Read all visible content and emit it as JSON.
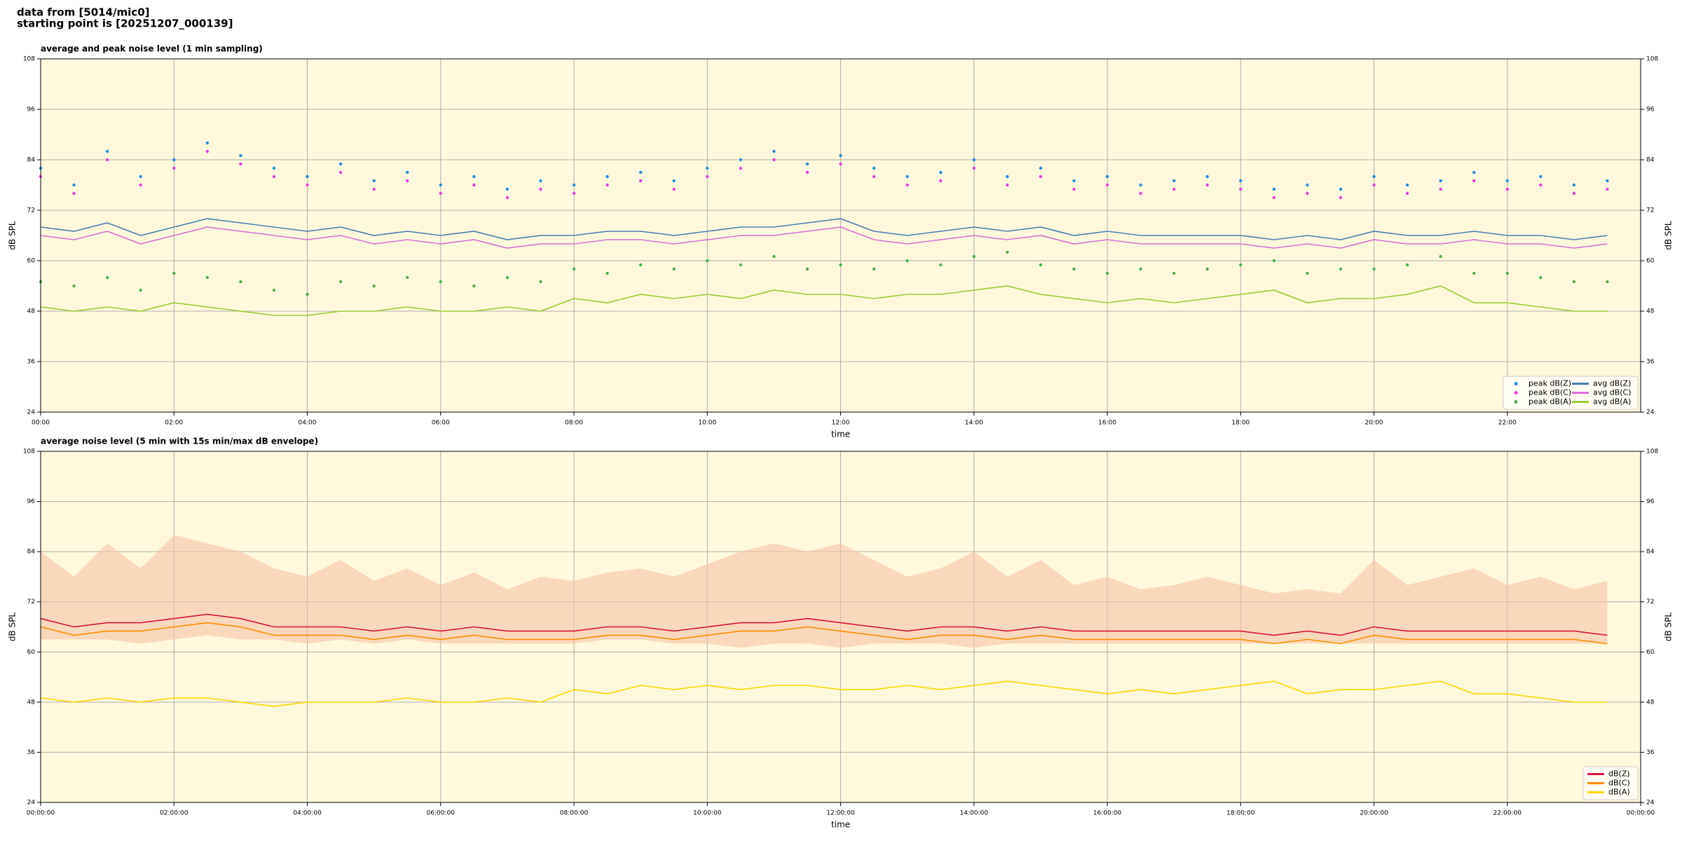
{
  "header": {
    "line1": "data from [5014/mic0]",
    "line2": "starting point is [20251207_000139]"
  },
  "chart_data": [
    {
      "type": "line",
      "title": "average and peak noise level (1 min sampling)",
      "xlabel": "time",
      "ylabel": "dB SPL",
      "background": "#fff8dc",
      "grid": true,
      "legend": "lower right",
      "legend_ncol": 2,
      "x": [
        0,
        30,
        60,
        90,
        120,
        150,
        180,
        210,
        240,
        270,
        300,
        330,
        360,
        390,
        420,
        450,
        480,
        510,
        540,
        570,
        600,
        630,
        660,
        690,
        720,
        750,
        780,
        810,
        840,
        870,
        900,
        930,
        960,
        990,
        1020,
        1050,
        1080,
        1110,
        1140,
        1170,
        1200,
        1230,
        1260,
        1290,
        1320,
        1350,
        1380,
        1410
      ],
      "xlim": [
        0,
        1440
      ],
      "xticks": [
        {
          "value": 0,
          "label": "00:00"
        },
        {
          "value": 120,
          "label": "02:00"
        },
        {
          "value": 240,
          "label": "04:00"
        },
        {
          "value": 360,
          "label": "06:00"
        },
        {
          "value": 480,
          "label": "08:00"
        },
        {
          "value": 600,
          "label": "10:00"
        },
        {
          "value": 720,
          "label": "12:00"
        },
        {
          "value": 840,
          "label": "14:00"
        },
        {
          "value": 960,
          "label": "16:00"
        },
        {
          "value": 1080,
          "label": "18:00"
        },
        {
          "value": 1200,
          "label": "20:00"
        },
        {
          "value": 1320,
          "label": "22:00"
        }
      ],
      "ylim": [
        24,
        108
      ],
      "yticks": [
        24,
        36,
        48,
        60,
        72,
        84,
        96,
        108
      ],
      "series": [
        {
          "name": "peak dB(Z)",
          "type": "scatter",
          "color": "#1f8fe0",
          "values": [
            82,
            78,
            86,
            80,
            84,
            88,
            85,
            82,
            80,
            83,
            79,
            81,
            78,
            80,
            77,
            79,
            78,
            80,
            81,
            79,
            82,
            84,
            86,
            83,
            85,
            82,
            80,
            81,
            84,
            80,
            82,
            79,
            80,
            78,
            79,
            80,
            79,
            77,
            78,
            77,
            80,
            78,
            79,
            81,
            79,
            80,
            78,
            79
          ]
        },
        {
          "name": "peak dB(C)",
          "type": "scatter",
          "color": "#e83ee0",
          "values": [
            80,
            76,
            84,
            78,
            82,
            86,
            83,
            80,
            78,
            81,
            77,
            79,
            76,
            78,
            75,
            77,
            76,
            78,
            79,
            77,
            80,
            82,
            84,
            81,
            83,
            80,
            78,
            79,
            82,
            78,
            80,
            77,
            78,
            76,
            77,
            78,
            77,
            75,
            76,
            75,
            78,
            76,
            77,
            79,
            77,
            78,
            76,
            77
          ]
        },
        {
          "name": "peak dB(A)",
          "type": "scatter",
          "color": "#4caf50",
          "values": [
            55,
            54,
            56,
            53,
            57,
            56,
            55,
            53,
            52,
            55,
            54,
            56,
            55,
            54,
            56,
            55,
            58,
            57,
            59,
            58,
            60,
            59,
            61,
            58,
            59,
            58,
            60,
            59,
            61,
            62,
            59,
            58,
            57,
            58,
            57,
            58,
            59,
            60,
            57,
            58,
            58,
            59,
            61,
            57,
            57,
            56,
            55,
            55
          ]
        },
        {
          "name": "avg dB(Z)",
          "type": "line",
          "color": "#4a7fb0",
          "values": [
            68,
            67,
            69,
            66,
            68,
            70,
            69,
            68,
            67,
            68,
            66,
            67,
            66,
            67,
            65,
            66,
            66,
            67,
            67,
            66,
            67,
            68,
            68,
            69,
            70,
            67,
            66,
            67,
            68,
            67,
            68,
            66,
            67,
            66,
            66,
            66,
            66,
            65,
            66,
            65,
            67,
            66,
            66,
            67,
            66,
            66,
            65,
            66
          ]
        },
        {
          "name": "avg dB(C)",
          "type": "line",
          "color": "#da70d6",
          "values": [
            66,
            65,
            67,
            64,
            66,
            68,
            67,
            66,
            65,
            66,
            64,
            65,
            64,
            65,
            63,
            64,
            64,
            65,
            65,
            64,
            65,
            66,
            66,
            67,
            68,
            65,
            64,
            65,
            66,
            65,
            66,
            64,
            65,
            64,
            64,
            64,
            64,
            63,
            64,
            63,
            65,
            64,
            64,
            65,
            64,
            64,
            63,
            64
          ]
        },
        {
          "name": "avg dB(A)",
          "type": "line",
          "color": "#9acd32",
          "values": [
            49,
            48,
            49,
            48,
            50,
            49,
            48,
            47,
            47,
            48,
            48,
            49,
            48,
            48,
            49,
            48,
            51,
            50,
            52,
            51,
            52,
            51,
            53,
            52,
            52,
            51,
            52,
            52,
            53,
            54,
            52,
            51,
            50,
            51,
            50,
            51,
            52,
            53,
            50,
            51,
            51,
            52,
            54,
            50,
            50,
            49,
            48,
            48
          ]
        }
      ]
    },
    {
      "type": "line",
      "title": "average noise level (5 min with 15s min/max dB envelope)",
      "xlabel": "time",
      "ylabel": "dB SPL",
      "background": "#fff8dc",
      "grid": true,
      "legend": "lower right",
      "legend_ncol": 1,
      "x": [
        0,
        30,
        60,
        90,
        120,
        150,
        180,
        210,
        240,
        270,
        300,
        330,
        360,
        390,
        420,
        450,
        480,
        510,
        540,
        570,
        600,
        630,
        660,
        690,
        720,
        750,
        780,
        810,
        840,
        870,
        900,
        930,
        960,
        990,
        1020,
        1050,
        1080,
        1110,
        1140,
        1170,
        1200,
        1230,
        1260,
        1290,
        1320,
        1350,
        1380,
        1410
      ],
      "xlim": [
        0,
        1440
      ],
      "xticks": [
        {
          "value": 0,
          "label": "00:00:00"
        },
        {
          "value": 120,
          "label": "02:00:00"
        },
        {
          "value": 240,
          "label": "04:00:00"
        },
        {
          "value": 360,
          "label": "06:00:00"
        },
        {
          "value": 480,
          "label": "08:00:00"
        },
        {
          "value": 600,
          "label": "10:00:00"
        },
        {
          "value": 720,
          "label": "12:00:00"
        },
        {
          "value": 840,
          "label": "14:00:00"
        },
        {
          "value": 960,
          "label": "16:00:00"
        },
        {
          "value": 1080,
          "label": "18:00:00"
        },
        {
          "value": 1200,
          "label": "20:00:00"
        },
        {
          "value": 1320,
          "label": "22:00:00"
        },
        {
          "value": 1440,
          "label": "00:00:00"
        }
      ],
      "ylim": [
        24,
        108
      ],
      "yticks": [
        24,
        36,
        48,
        60,
        72,
        84,
        96,
        108
      ],
      "envelope": {
        "color": "#f7c3a6",
        "upper": [
          84,
          78,
          86,
          80,
          88,
          86,
          84,
          80,
          78,
          82,
          77,
          80,
          76,
          79,
          75,
          78,
          77,
          79,
          80,
          78,
          81,
          84,
          86,
          84,
          86,
          82,
          78,
          80,
          84,
          78,
          82,
          76,
          78,
          75,
          76,
          78,
          76,
          74,
          75,
          74,
          82,
          76,
          78,
          80,
          76,
          78,
          75,
          77
        ],
        "lower": [
          63,
          63,
          63,
          62,
          63,
          64,
          63,
          63,
          62,
          63,
          62,
          63,
          62,
          62,
          62,
          62,
          62,
          63,
          63,
          62,
          62,
          61,
          62,
          62,
          61,
          62,
          62,
          62,
          61,
          62,
          62,
          62,
          62,
          62,
          62,
          62,
          62,
          62,
          62,
          62,
          62,
          62,
          62,
          62,
          62,
          62,
          62,
          62
        ]
      },
      "series": [
        {
          "name": "dB(Z)",
          "type": "line",
          "color": "#dc143c",
          "values": [
            68,
            66,
            67,
            67,
            68,
            69,
            68,
            66,
            66,
            66,
            65,
            66,
            65,
            66,
            65,
            65,
            65,
            66,
            66,
            65,
            66,
            67,
            67,
            68,
            67,
            66,
            65,
            66,
            66,
            65,
            66,
            65,
            65,
            65,
            65,
            65,
            65,
            64,
            65,
            64,
            66,
            65,
            65,
            65,
            65,
            65,
            65,
            64
          ]
        },
        {
          "name": "dB(C)",
          "type": "line",
          "color": "#ff8c00",
          "values": [
            66,
            64,
            65,
            65,
            66,
            67,
            66,
            64,
            64,
            64,
            63,
            64,
            63,
            64,
            63,
            63,
            63,
            64,
            64,
            63,
            64,
            65,
            65,
            66,
            65,
            64,
            63,
            64,
            64,
            63,
            64,
            63,
            63,
            63,
            63,
            63,
            63,
            62,
            63,
            62,
            64,
            63,
            63,
            63,
            63,
            63,
            63,
            62
          ]
        },
        {
          "name": "dB(A)",
          "type": "line",
          "color": "#ffd700",
          "values": [
            49,
            48,
            49,
            48,
            49,
            49,
            48,
            47,
            48,
            48,
            48,
            49,
            48,
            48,
            49,
            48,
            51,
            50,
            52,
            51,
            52,
            51,
            52,
            52,
            51,
            51,
            52,
            51,
            52,
            53,
            52,
            51,
            50,
            51,
            50,
            51,
            52,
            53,
            50,
            51,
            51,
            52,
            53,
            50,
            50,
            49,
            48,
            48
          ]
        }
      ]
    }
  ]
}
